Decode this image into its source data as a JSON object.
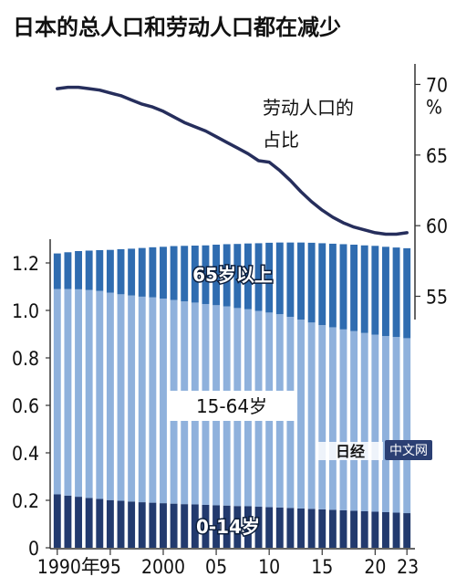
{
  "chart_data": {
    "type": "bar",
    "title": "日本的总人口和劳动人口都在减少",
    "left_axis": {
      "unit": "",
      "ylim": [
        0,
        1.3
      ],
      "ticks": [
        "1.2",
        "1.0",
        "0.8",
        "0.6",
        "0.4",
        "0.2",
        "0"
      ]
    },
    "right_axis": {
      "unit": "%",
      "ylim": [
        54,
        71
      ],
      "ticks": [
        "70",
        "65",
        "60",
        "55"
      ]
    },
    "x": [
      1990,
      1991,
      1992,
      1993,
      1994,
      1995,
      1996,
      1997,
      1998,
      1999,
      2000,
      2001,
      2002,
      2003,
      2004,
      2005,
      2006,
      2007,
      2008,
      2009,
      2010,
      2011,
      2012,
      2013,
      2014,
      2015,
      2016,
      2017,
      2018,
      2019,
      2020,
      2021,
      2022,
      2023
    ],
    "x_tick_labels": [
      {
        "year": 1990,
        "text": "1990年"
      },
      {
        "year": 1995,
        "text": "95"
      },
      {
        "year": 2000,
        "text": "2000"
      },
      {
        "year": 2005,
        "text": "05"
      },
      {
        "year": 2010,
        "text": "10"
      },
      {
        "year": 2015,
        "text": "15"
      },
      {
        "year": 2020,
        "text": "20"
      },
      {
        "year": 2023,
        "text": "23"
      }
    ],
    "stacked": true,
    "series": [
      {
        "name": "0-14岁",
        "color": "#223a6e",
        "values": [
          0.225,
          0.22,
          0.215,
          0.21,
          0.206,
          0.201,
          0.198,
          0.195,
          0.192,
          0.19,
          0.188,
          0.186,
          0.184,
          0.183,
          0.181,
          0.179,
          0.178,
          0.176,
          0.175,
          0.173,
          0.171,
          0.17,
          0.168,
          0.166,
          0.164,
          0.162,
          0.16,
          0.158,
          0.156,
          0.154,
          0.152,
          0.15,
          0.148,
          0.146
        ]
      },
      {
        "name": "15-64岁",
        "color": "#8fb1dc",
        "values": [
          0.865,
          0.87,
          0.874,
          0.876,
          0.876,
          0.874,
          0.87,
          0.868,
          0.866,
          0.865,
          0.862,
          0.858,
          0.854,
          0.85,
          0.846,
          0.843,
          0.839,
          0.834,
          0.83,
          0.825,
          0.82,
          0.814,
          0.805,
          0.795,
          0.785,
          0.776,
          0.769,
          0.762,
          0.757,
          0.751,
          0.746,
          0.742,
          0.74,
          0.737
        ]
      },
      {
        "name": "65岁以上",
        "color": "#2f6cb0",
        "values": [
          0.15,
          0.155,
          0.161,
          0.166,
          0.172,
          0.18,
          0.19,
          0.197,
          0.205,
          0.211,
          0.218,
          0.227,
          0.234,
          0.24,
          0.247,
          0.255,
          0.262,
          0.27,
          0.277,
          0.285,
          0.294,
          0.302,
          0.313,
          0.325,
          0.336,
          0.345,
          0.352,
          0.359,
          0.364,
          0.369,
          0.374,
          0.376,
          0.377,
          0.379
        ]
      }
    ],
    "line": {
      "name": "劳动人口的占比",
      "label_lines": [
        "劳动人口的",
        "占比"
      ],
      "color": "#262e5c",
      "axis": "right",
      "values": [
        69.7,
        69.8,
        69.8,
        69.7,
        69.6,
        69.4,
        69.2,
        68.9,
        68.6,
        68.4,
        68.1,
        67.7,
        67.3,
        67.0,
        66.7,
        66.3,
        65.9,
        65.5,
        65.1,
        64.6,
        64.5,
        63.9,
        63.2,
        62.4,
        61.7,
        61.1,
        60.6,
        60.2,
        59.9,
        59.7,
        59.5,
        59.4,
        59.4,
        59.5
      ]
    },
    "watermark": "中文网"
  }
}
